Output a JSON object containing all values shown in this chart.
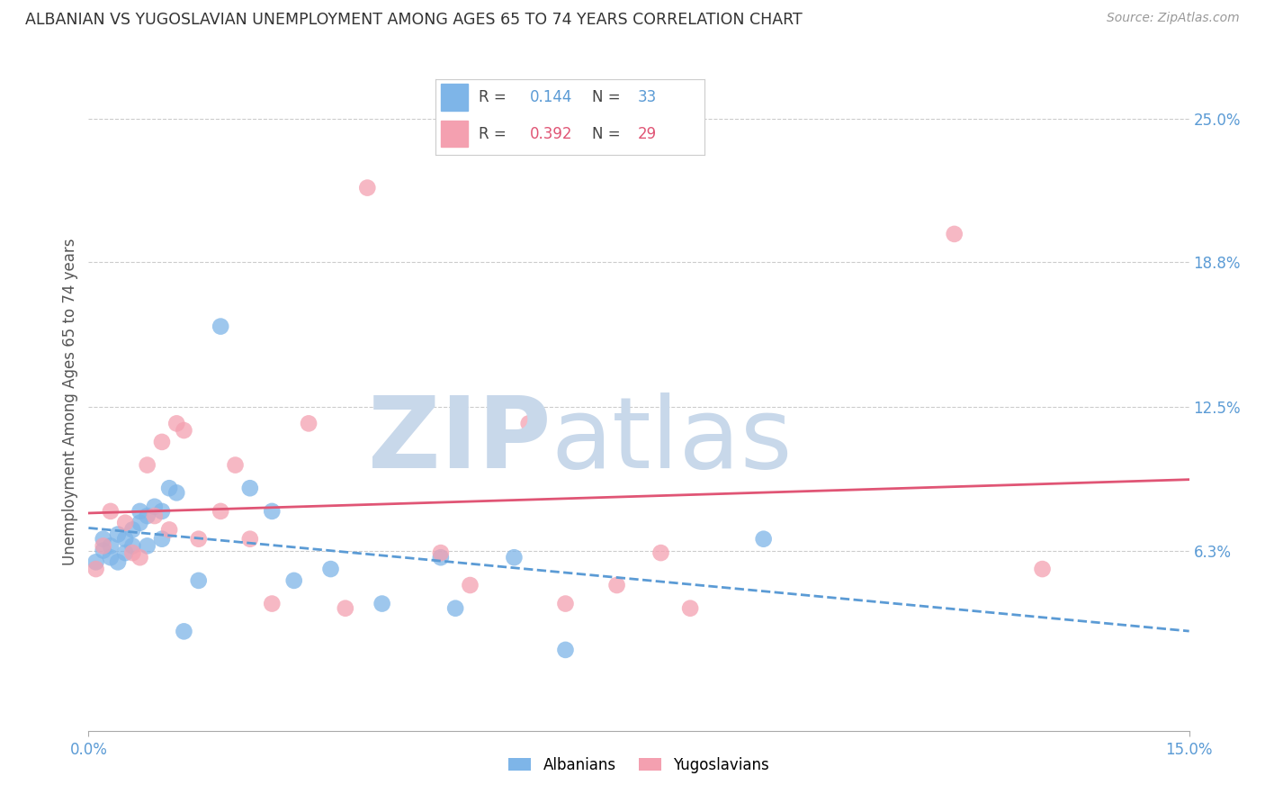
{
  "title": "ALBANIAN VS YUGOSLAVIAN UNEMPLOYMENT AMONG AGES 65 TO 74 YEARS CORRELATION CHART",
  "source": "Source: ZipAtlas.com",
  "ylabel": "Unemployment Among Ages 65 to 74 years",
  "xlim": [
    0.0,
    0.15
  ],
  "ylim": [
    -0.015,
    0.27
  ],
  "ytick_vals": [
    0.063,
    0.125,
    0.188,
    0.25
  ],
  "ytick_labels": [
    "6.3%",
    "12.5%",
    "18.8%",
    "25.0%"
  ],
  "xtick_vals": [
    0.0,
    0.15
  ],
  "xtick_labels": [
    "0.0%",
    "15.0%"
  ],
  "albanian_R": 0.144,
  "albanian_N": 33,
  "yugoslav_R": 0.392,
  "yugoslav_N": 29,
  "albanian_color": "#7eb5e8",
  "yugoslav_color": "#f4a0b0",
  "albanian_line_color": "#5b9bd5",
  "yugoslav_line_color": "#e05575",
  "watermark_zip_color": "#c8d8ea",
  "watermark_atlas_color": "#c8d8ea",
  "tick_color": "#5b9bd5",
  "albanian_x": [
    0.001,
    0.002,
    0.002,
    0.003,
    0.003,
    0.004,
    0.004,
    0.005,
    0.005,
    0.006,
    0.006,
    0.007,
    0.007,
    0.008,
    0.008,
    0.009,
    0.01,
    0.01,
    0.011,
    0.012,
    0.013,
    0.015,
    0.018,
    0.022,
    0.025,
    0.028,
    0.033,
    0.04,
    0.048,
    0.05,
    0.058,
    0.065,
    0.092
  ],
  "albanian_y": [
    0.058,
    0.063,
    0.068,
    0.06,
    0.065,
    0.058,
    0.07,
    0.062,
    0.068,
    0.072,
    0.065,
    0.075,
    0.08,
    0.078,
    0.065,
    0.082,
    0.08,
    0.068,
    0.09,
    0.088,
    0.028,
    0.05,
    0.16,
    0.09,
    0.08,
    0.05,
    0.055,
    0.04,
    0.06,
    0.038,
    0.06,
    0.02,
    0.068
  ],
  "yugoslav_x": [
    0.001,
    0.002,
    0.003,
    0.005,
    0.006,
    0.007,
    0.008,
    0.009,
    0.01,
    0.011,
    0.012,
    0.013,
    0.015,
    0.018,
    0.02,
    0.022,
    0.025,
    0.03,
    0.035,
    0.038,
    0.048,
    0.052,
    0.06,
    0.065,
    0.072,
    0.078,
    0.082,
    0.118,
    0.13
  ],
  "yugoslav_y": [
    0.055,
    0.065,
    0.08,
    0.075,
    0.062,
    0.06,
    0.1,
    0.078,
    0.11,
    0.072,
    0.118,
    0.115,
    0.068,
    0.08,
    0.1,
    0.068,
    0.04,
    0.118,
    0.038,
    0.22,
    0.062,
    0.048,
    0.118,
    0.04,
    0.048,
    0.062,
    0.038,
    0.2,
    0.055
  ]
}
